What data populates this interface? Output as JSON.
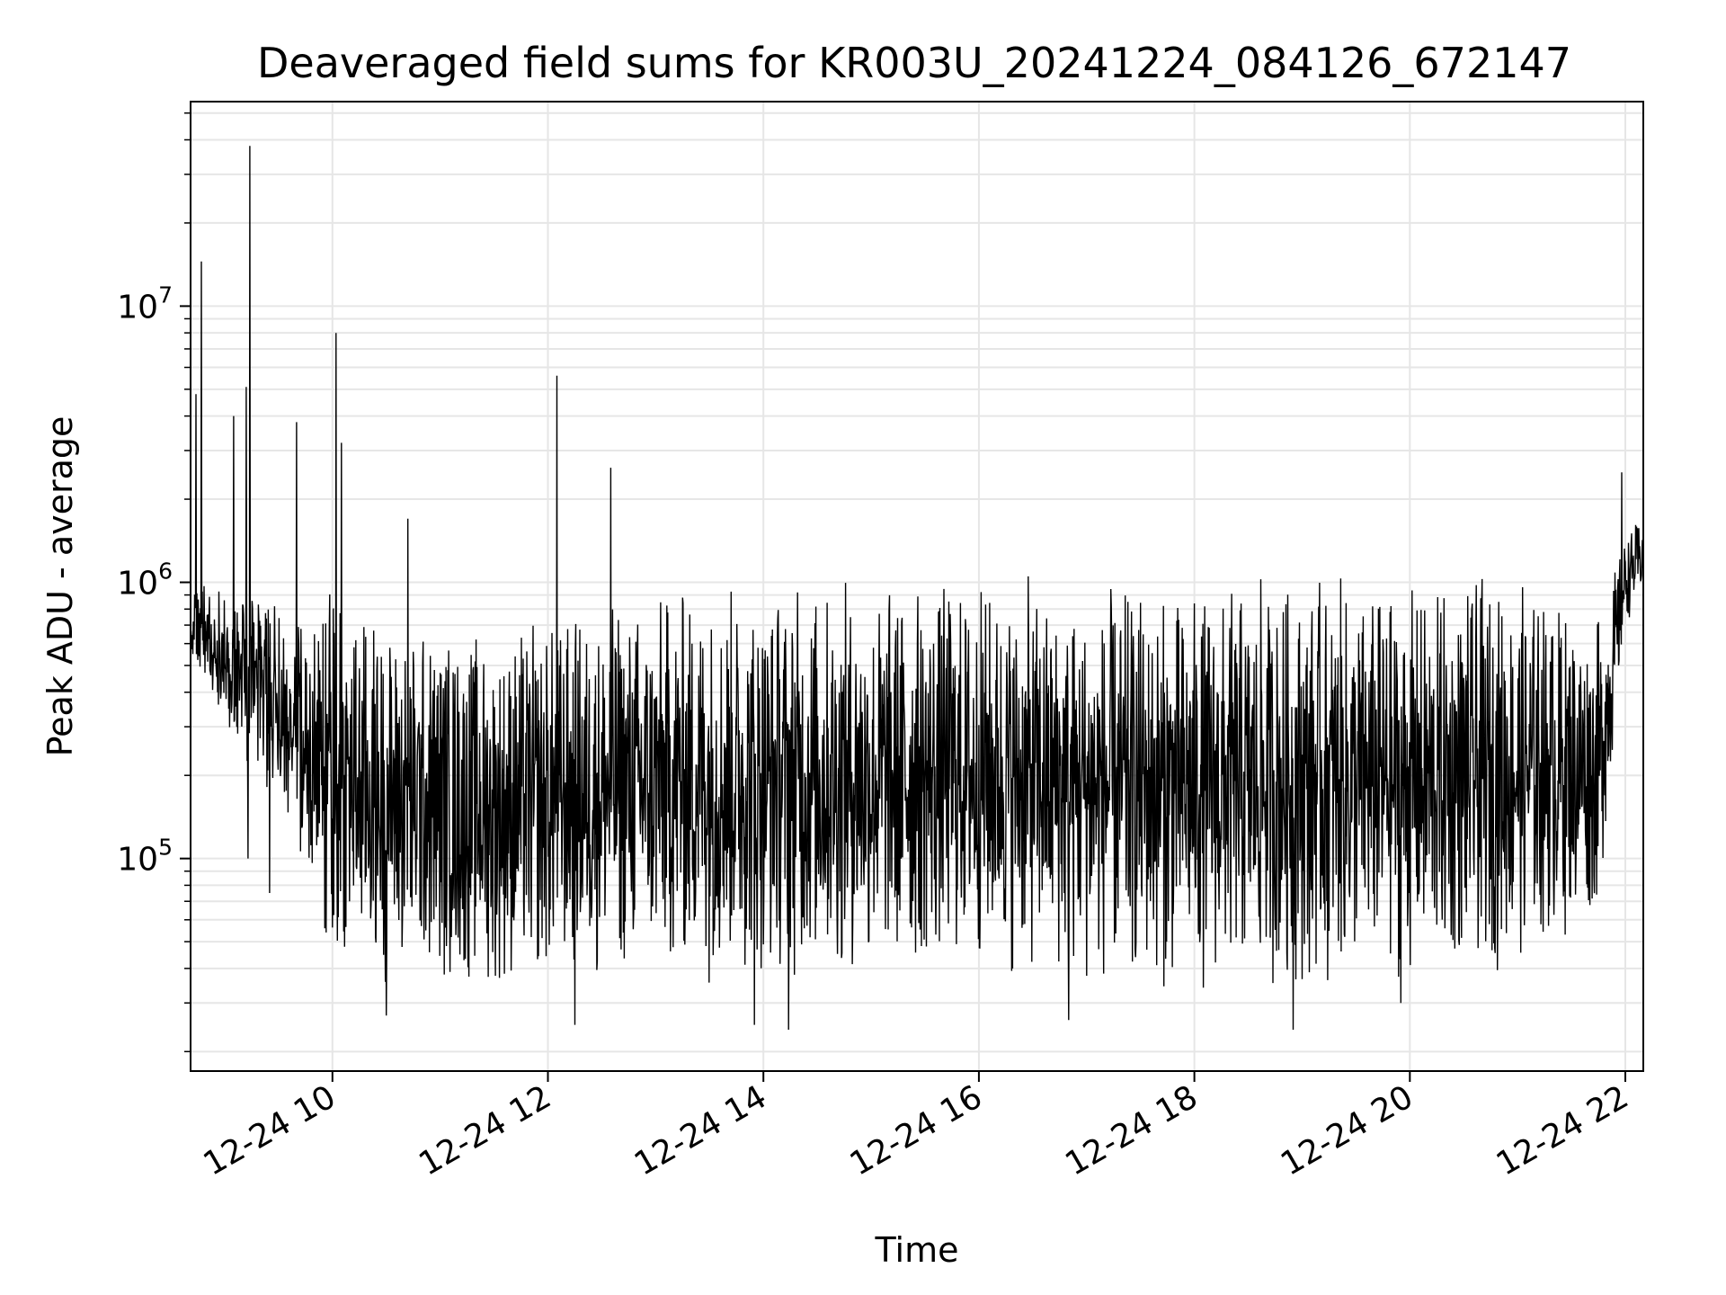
{
  "chart_data": {
    "type": "line",
    "title": "Deaveraged field sums for KR003U_20241224_084126_672147",
    "xlabel": "Time",
    "ylabel": "Peak ADU - average",
    "x_axis_kind": "time",
    "xlim": [
      "12-24 08:41",
      "12-24 22:10"
    ],
    "x_ticks": [
      {
        "time": "12-24 10:00",
        "label": "12-24 10"
      },
      {
        "time": "12-24 12:00",
        "label": "12-24 12"
      },
      {
        "time": "12-24 14:00",
        "label": "12-24 14"
      },
      {
        "time": "12-24 16:00",
        "label": "12-24 16"
      },
      {
        "time": "12-24 18:00",
        "label": "12-24 18"
      },
      {
        "time": "12-24 20:00",
        "label": "12-24 20"
      },
      {
        "time": "12-24 22:00",
        "label": "12-24 22"
      }
    ],
    "y_scale": "log",
    "ylim": [
      17000,
      55000000
    ],
    "y_ticks": [
      {
        "value": 100000,
        "base": "10",
        "exp": "5"
      },
      {
        "value": 1000000,
        "base": "10",
        "exp": "6"
      },
      {
        "value": 10000000,
        "base": "10",
        "exp": "7"
      }
    ],
    "grid": true,
    "line_color": "#000000",
    "grid_color": "#e6e6e6",
    "series": [
      {
        "band_profile": {
          "note": "noisy signal; upper and lower envelope of the trace over time",
          "time": [
            "12-24 08:41",
            "12-24 09:15",
            "12-24 09:40",
            "12-24 09:55",
            "12-24 10:30",
            "12-24 11:30",
            "12-24 12:30",
            "12-24 13:30",
            "12-24 15:00",
            "12-24 16:00",
            "12-24 17:00",
            "12-24 18:00",
            "12-24 19:00",
            "12-24 20:00",
            "12-24 21:00",
            "12-24 21:45",
            "12-24 22:00",
            "12-24 22:10"
          ],
          "upper": [
            1000000,
            1000000,
            700000,
            1000000,
            800000,
            700000,
            900000,
            1100000,
            1100000,
            1100000,
            1000000,
            1000000,
            1100000,
            1000000,
            1100000,
            800000,
            1500000,
            1800000
          ],
          "lower": [
            500000,
            200000,
            120000,
            40000,
            35000,
            32000,
            35000,
            35000,
            35000,
            38000,
            32000,
            32000,
            33000,
            35000,
            40000,
            60000,
            700000,
            900000
          ]
        },
        "peaks": [
          {
            "time": "12-24 08:44",
            "value": 4800000
          },
          {
            "time": "12-24 08:47",
            "value": 14500000
          },
          {
            "time": "12-24 09:05",
            "value": 4000000
          },
          {
            "time": "12-24 09:12",
            "value": 5100000
          },
          {
            "time": "12-24 09:14",
            "value": 38000000
          },
          {
            "time": "12-24 09:40",
            "value": 3800000
          },
          {
            "time": "12-24 10:02",
            "value": 8000000
          },
          {
            "time": "12-24 10:05",
            "value": 3200000
          },
          {
            "time": "12-24 10:42",
            "value": 1700000
          },
          {
            "time": "12-24 12:05",
            "value": 5600000
          },
          {
            "time": "12-24 12:35",
            "value": 2600000
          },
          {
            "time": "12-24 21:58",
            "value": 2500000
          }
        ],
        "troughs": [
          {
            "time": "12-24 09:13",
            "value": 100000
          },
          {
            "time": "12-24 09:25",
            "value": 75000
          },
          {
            "time": "12-24 10:30",
            "value": 27000
          },
          {
            "time": "12-24 12:15",
            "value": 25000
          },
          {
            "time": "12-24 13:55",
            "value": 25000
          },
          {
            "time": "12-24 14:14",
            "value": 24000
          },
          {
            "time": "12-24 16:50",
            "value": 26000
          },
          {
            "time": "12-24 18:55",
            "value": 24000
          },
          {
            "time": "12-24 19:55",
            "value": 30000
          }
        ]
      }
    ]
  }
}
